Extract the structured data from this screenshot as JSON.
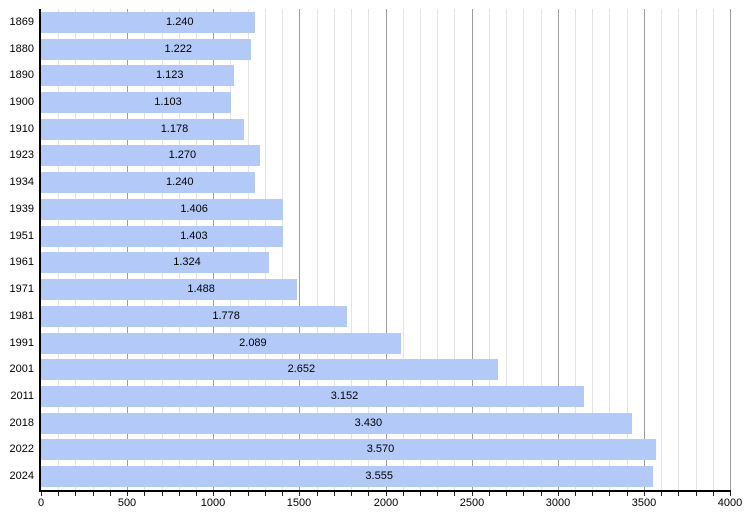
{
  "chart_data": {
    "type": "bar",
    "orientation": "horizontal",
    "title": "",
    "xlabel": "",
    "ylabel": "",
    "categories": [
      "1869",
      "1880",
      "1890",
      "1900",
      "1910",
      "1923",
      "1934",
      "1939",
      "1951",
      "1961",
      "1971",
      "1981",
      "1991",
      "2001",
      "2011",
      "2018",
      "2022",
      "2024"
    ],
    "values": [
      1240,
      1222,
      1123,
      1103,
      1178,
      1270,
      1240,
      1406,
      1403,
      1324,
      1488,
      1778,
      2089,
      2652,
      3152,
      3430,
      3570,
      3555
    ],
    "value_labels": [
      "1.240",
      "1.222",
      "1.123",
      "1.103",
      "1.178",
      "1.270",
      "1.240",
      "1.406",
      "1.403",
      "1.324",
      "1.488",
      "1.778",
      "2.089",
      "2.652",
      "3.152",
      "3.430",
      "3.570",
      "3.555"
    ],
    "xlim": [
      0,
      4000
    ],
    "x_tick_values": [
      0,
      500,
      1000,
      1500,
      2000,
      2500,
      3000,
      3500,
      4000
    ],
    "x_tick_labels": [
      "0",
      "500",
      "1000",
      "1500",
      "2000",
      "2500",
      "3000",
      "3500",
      "4000"
    ],
    "minor_grid_step": 100,
    "major_grid_step": 500,
    "grid_on": true,
    "legend": "none",
    "colors": {
      "bar_fill": "#b3c9f8",
      "minor_gridline": "#e3e3e3",
      "major_gridline": "#9d9d9d",
      "axis_line": "#000000",
      "label_text": "#000000",
      "background": "#ffffff"
    }
  }
}
